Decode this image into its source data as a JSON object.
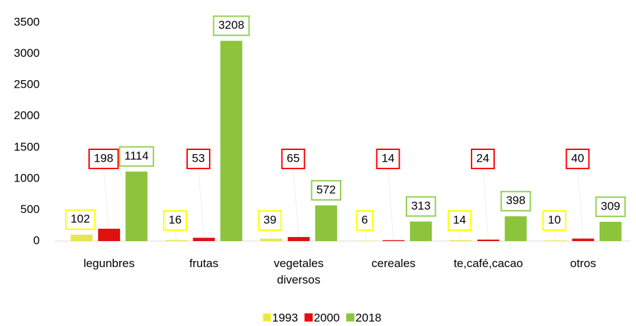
{
  "chart_data": {
    "type": "bar",
    "categories": [
      "legunbres",
      "frutas",
      "vegetales diversos",
      "cereales",
      "te,café,cacao",
      "otros"
    ],
    "series": [
      {
        "name": "1993",
        "color": "#e6e650",
        "label_border": "#ffff00",
        "values": [
          102,
          16,
          39,
          6,
          14,
          10
        ]
      },
      {
        "name": "2000",
        "color": "#e01010",
        "label_border": "#ff0000",
        "values": [
          198,
          53,
          65,
          14,
          24,
          40
        ]
      },
      {
        "name": "2018",
        "color": "#8cc43c",
        "label_border": "#92d050",
        "values": [
          1114,
          3208,
          572,
          313,
          398,
          309
        ]
      }
    ],
    "ylim": [
      0,
      3500
    ],
    "yticks": [
      0,
      500,
      1000,
      1500,
      2000,
      2500,
      3000,
      3500
    ],
    "grid": false,
    "legend": "bottom"
  }
}
